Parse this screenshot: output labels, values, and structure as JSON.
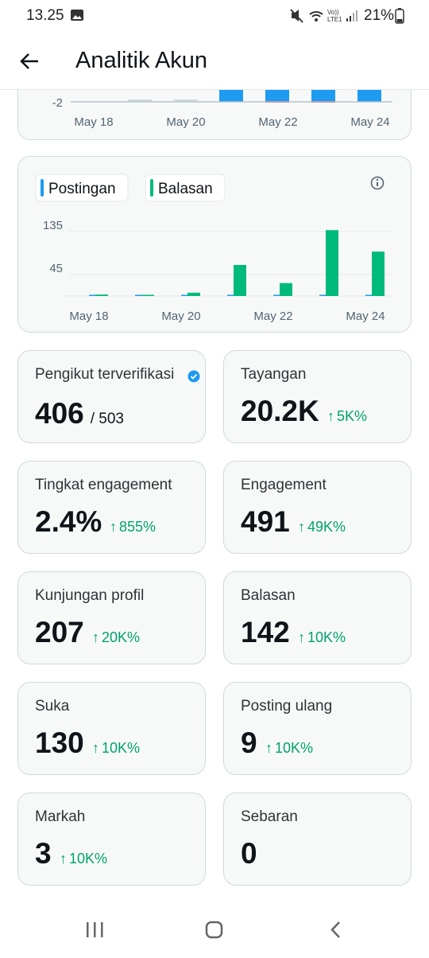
{
  "status_bar": {
    "time": "13.25",
    "battery": "21%"
  },
  "header": {
    "title": "Analitik Akun"
  },
  "top_chart": {
    "yticks": [
      -2
    ],
    "x_labels": [
      "May 18",
      "May 20",
      "May 22",
      "May 24"
    ]
  },
  "activity_chart": {
    "type": "bar",
    "categories": [
      "May 18",
      null,
      "May 20",
      null,
      "May 22",
      null,
      "May 24"
    ],
    "series": [
      {
        "name": "Postingan",
        "color": "#1d9bf0",
        "values": [
          0,
          1,
          0,
          1,
          1,
          1,
          1
        ]
      },
      {
        "name": "Balasan",
        "color": "#00ba7c",
        "values": [
          3,
          0,
          7,
          65,
          27,
          138,
          93
        ]
      }
    ],
    "ylim": [
      0,
      150
    ],
    "yticks": [
      45,
      135
    ],
    "grid": true
  },
  "stats": [
    {
      "label": "Pengikut terverifikasi",
      "value": "406",
      "total": "/ 503"
    },
    {
      "label": "Tayangan",
      "value": "20.2K",
      "change": "5K%"
    },
    {
      "label": "Tingkat engagement",
      "value": "2.4%",
      "change": "855%"
    },
    {
      "label": "Engagement",
      "value": "491",
      "change": "49K%"
    },
    {
      "label": "Kunjungan profil",
      "value": "207",
      "change": "20K%"
    },
    {
      "label": "Balasan",
      "value": "142",
      "change": "10K%"
    },
    {
      "label": "Suka",
      "value": "130",
      "change": "10K%"
    },
    {
      "label": "Posting ulang",
      "value": "9",
      "change": "10K%"
    },
    {
      "label": "Markah",
      "value": "3",
      "change": "10K%"
    },
    {
      "label": "Sebaran",
      "value": "0"
    }
  ]
}
